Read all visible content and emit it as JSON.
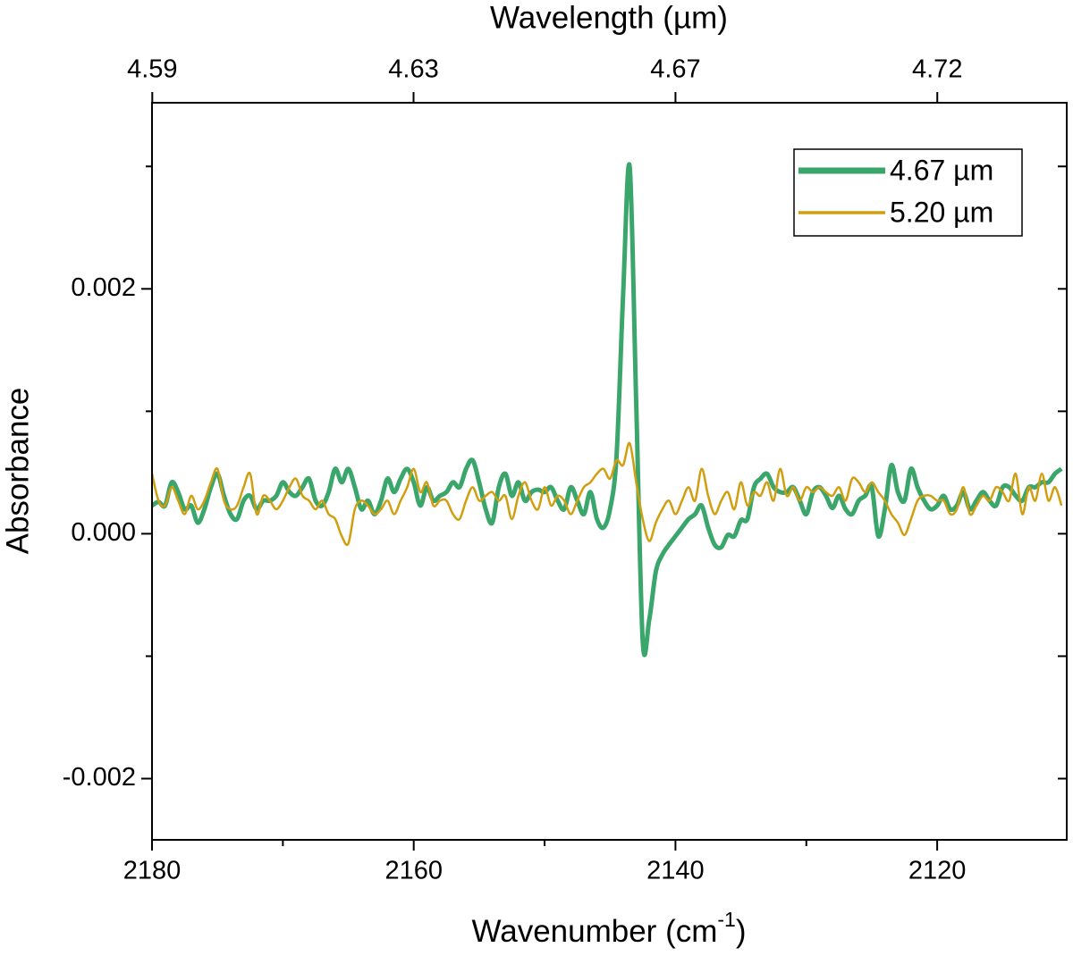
{
  "chart_data": {
    "type": "line",
    "x2label": "Wavelength (µm)",
    "xlabel": [
      "Wavenumber (cm",
      "-1",
      ")"
    ],
    "ylabel": "Absorbance",
    "xlim": [
      2180,
      2110.1
    ],
    "ylim": [
      -0.0025,
      0.00352
    ],
    "xticks": [
      2180,
      2160,
      2140,
      2120
    ],
    "xminorticks": [
      2170,
      2150,
      2130
    ],
    "x2ticks": [
      {
        "value": 4.5872,
        "label": "4.59"
      },
      {
        "value": 4.6296,
        "label": "4.63"
      },
      {
        "value": 4.6729,
        "label": "4.67"
      },
      {
        "value": 4.717,
        "label": "4.72"
      }
    ],
    "yticks": [
      {
        "value": -0.002,
        "label": "-0.002"
      },
      {
        "value": 0,
        "label": "0.000"
      },
      {
        "value": 0.002,
        "label": "0.002"
      }
    ],
    "yminorticks": [
      -0.001,
      0.001,
      0.003
    ],
    "legend": "upper right",
    "x": [
      2180,
      2179.5,
      2179,
      2178.5,
      2178,
      2177.5,
      2177,
      2176.5,
      2176,
      2175.5,
      2175,
      2174.5,
      2174,
      2173.5,
      2173,
      2172.5,
      2172,
      2171.5,
      2171,
      2170.5,
      2170,
      2169.5,
      2169,
      2168.5,
      2168,
      2167.5,
      2167,
      2166.5,
      2166,
      2165.5,
      2165,
      2164.5,
      2164,
      2163.5,
      2163,
      2162.5,
      2162,
      2161.5,
      2161,
      2160.5,
      2160,
      2159.5,
      2159,
      2158.5,
      2158,
      2157.5,
      2157,
      2156.5,
      2156,
      2155.5,
      2155,
      2154.5,
      2154,
      2153.5,
      2153,
      2152.5,
      2152,
      2151.5,
      2151,
      2150.5,
      2150,
      2149.5,
      2149,
      2148.5,
      2148,
      2147.5,
      2147,
      2146.5,
      2146,
      2145.5,
      2145,
      2144.5,
      2144,
      2143.5,
      2143,
      2142.5,
      2142,
      2141.5,
      2141,
      2140.5,
      2140,
      2139.5,
      2139,
      2138.5,
      2138,
      2137.5,
      2137,
      2136.5,
      2136,
      2135.5,
      2135,
      2134.5,
      2134,
      2133.5,
      2133,
      2132.5,
      2132,
      2131.5,
      2131,
      2130.5,
      2130,
      2129.5,
      2129,
      2128.5,
      2128,
      2127.5,
      2127,
      2126.5,
      2126,
      2125.5,
      2125,
      2124.5,
      2124,
      2123.5,
      2123,
      2122.5,
      2122,
      2121.5,
      2121,
      2120.5,
      2120,
      2119.5,
      2119,
      2118.5,
      2118,
      2117.5,
      2117,
      2116.5,
      2116,
      2115.5,
      2115,
      2114.5,
      2114,
      2113.5,
      2113,
      2112.5,
      2112,
      2111.5,
      2111,
      2110.5
    ],
    "series": [
      {
        "name": "4.67 µm",
        "color": "#3aa66c",
        "width": 5,
        "values": [
          0.00023,
          0.00026,
          0.00023,
          0.00042,
          0.00034,
          0.0002,
          0.00023,
          9e-05,
          0.0002,
          0.00038,
          0.00049,
          0.00031,
          0.00016,
          0.00012,
          0.00027,
          0.00031,
          0.0002,
          0.00027,
          0.00027,
          0.00031,
          0.00042,
          0.00034,
          0.00031,
          0.00038,
          0.00045,
          0.00027,
          0.00023,
          0.00034,
          0.00053,
          0.00042,
          0.00053,
          0.00038,
          0.0002,
          0.00027,
          0.00016,
          0.00027,
          0.00045,
          0.00034,
          0.00045,
          0.00053,
          0.00042,
          0.00023,
          0.00038,
          0.00027,
          0.00031,
          0.00034,
          0.00042,
          0.00038,
          0.00053,
          0.0006,
          0.00042,
          0.0002,
          9e-05,
          0.00038,
          0.00049,
          0.00031,
          0.00042,
          0.00027,
          0.00034,
          0.00036,
          0.00034,
          0.00038,
          0.00027,
          0.0002,
          0.00038,
          0.00027,
          0.00016,
          0.00034,
          0.00012,
          5e-05,
          0.0002,
          0.00064,
          0.00195,
          0.003,
          0.00107,
          -0.00088,
          -0.0007,
          -0.00031,
          -0.00017,
          -9e-05,
          -2e-05,
          5e-05,
          0.00012,
          0.00016,
          0.00023,
          5e-05,
          -9e-05,
          -0.00011,
          -1e-05,
          -2e-05,
          0.00011,
          0.00012,
          0.00038,
          0.00045,
          0.00049,
          0.00038,
          0.00034,
          0.00034,
          0.00038,
          0.00027,
          0.00016,
          0.00034,
          0.00038,
          0.00031,
          0.00021,
          0.00031,
          0.0002,
          0.00016,
          0.00027,
          0.00031,
          0.00038,
          -2e-05,
          0.0002,
          0.00056,
          0.00034,
          0.00027,
          0.00053,
          0.00038,
          0.00027,
          0.0002,
          0.00023,
          0.00031,
          0.0002,
          0.00023,
          0.00034,
          0.0002,
          0.00027,
          0.00034,
          0.00027,
          0.00023,
          0.00038,
          0.00038,
          0.00031,
          0.00027,
          0.00038,
          0.00038,
          0.00042,
          0.00042,
          0.00049,
          0.00053
        ]
      },
      {
        "name": "5.20 µm",
        "color": "#d09e0f",
        "width": 2.5,
        "values": [
          0.00049,
          0.00027,
          0.00023,
          0.00038,
          0.00027,
          0.00016,
          0.00031,
          0.0002,
          0.00027,
          0.00042,
          0.00053,
          0.00027,
          0.0002,
          0.00023,
          0.00038,
          0.00049,
          0.00016,
          0.00031,
          0.00027,
          0.0002,
          0.00027,
          0.00038,
          0.00045,
          0.00031,
          0.00027,
          0.0002,
          0.00027,
          0.00016,
          0.00012,
          -2e-05,
          -8e-05,
          0.0002,
          0.00027,
          0.00023,
          0.00016,
          0.0002,
          0.00027,
          0.00016,
          0.00027,
          0.00038,
          0.00053,
          0.00034,
          0.00042,
          0.00023,
          0.00027,
          0.00027,
          0.00016,
          0.00012,
          0.00027,
          0.00038,
          0.00027,
          0.00031,
          0.00034,
          0.00027,
          0.00031,
          0.00012,
          0.00031,
          0.00042,
          0.00027,
          0.0002,
          0.00038,
          0.00023,
          0.00031,
          0.00027,
          0.00016,
          0.00027,
          0.00038,
          0.00042,
          0.00049,
          0.00053,
          0.00045,
          0.0006,
          0.00056,
          0.00074,
          0.00042,
          0.00012,
          -6e-05,
          9e-05,
          0.0002,
          0.00027,
          0.00016,
          0.00027,
          0.00038,
          0.00027,
          0.00053,
          0.00031,
          0.00016,
          0.00027,
          0.00034,
          0.0002,
          0.00042,
          0.00023,
          0.00034,
          0.00031,
          0.00042,
          0.00027,
          0.00053,
          0.00031,
          0.00038,
          0.00027,
          0.00038,
          0.00034,
          0.00038,
          0.00034,
          0.00031,
          0.00038,
          0.00027,
          0.00045,
          0.00042,
          0.00034,
          0.00042,
          0.00034,
          0.00027,
          0.00016,
          9e-05,
          -1e-05,
          0.00012,
          0.00027,
          0.00031,
          0.00031,
          0.00027,
          0.00027,
          0.00016,
          0.0002,
          0.00038,
          0.00016,
          0.00023,
          0.00031,
          0.00027,
          0.00038,
          0.00034,
          0.00027,
          0.00049,
          0.00016,
          0.00038,
          0.00027,
          0.00049,
          0.00027,
          0.00038,
          0.00023
        ]
      }
    ]
  }
}
